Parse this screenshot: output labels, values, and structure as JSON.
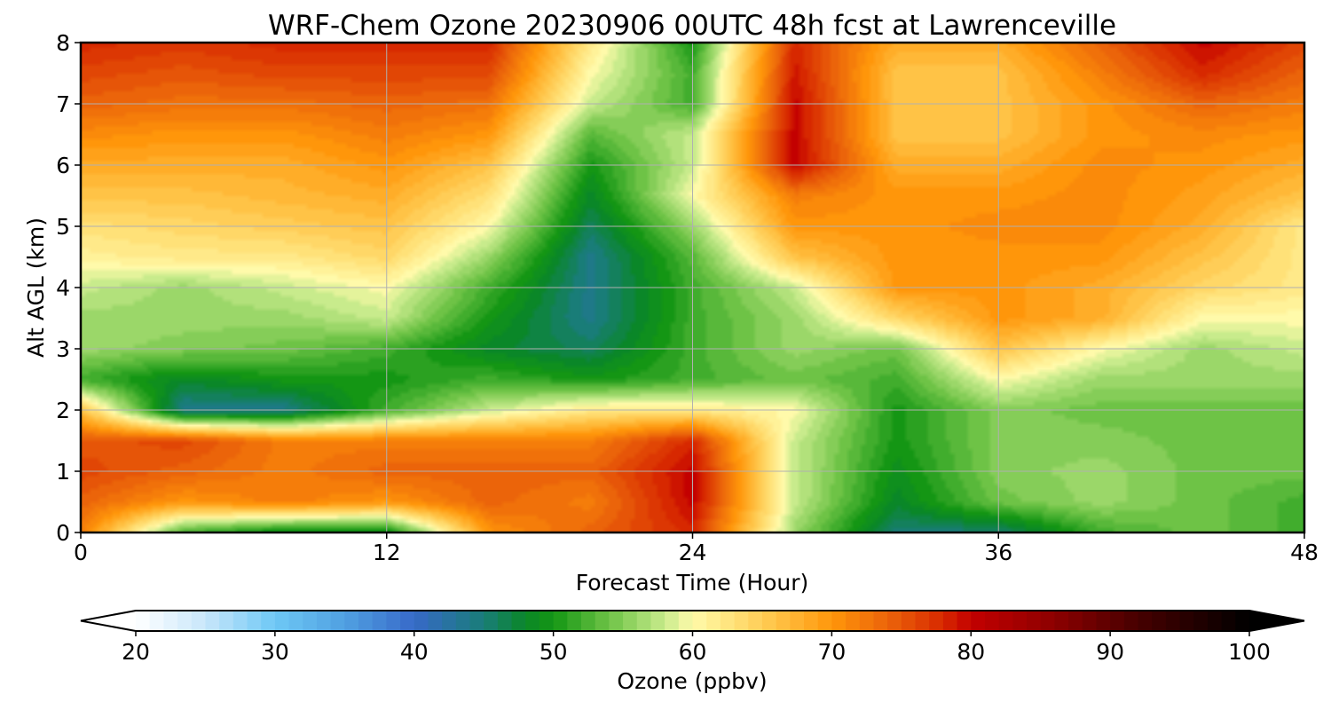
{
  "chart_data": {
    "type": "heatmap",
    "title": "WRF-Chem Ozone  20230906 00UTC 48h fcst at Lawrenceville",
    "xlabel": "Forecast Time (Hour)",
    "ylabel": "Alt AGL (km)",
    "xlim": [
      0,
      48
    ],
    "ylim": [
      0,
      8
    ],
    "xticks": [
      0,
      12,
      24,
      36,
      48
    ],
    "yticks": [
      0,
      1,
      2,
      3,
      4,
      5,
      6,
      7,
      8
    ],
    "grid": true,
    "x": [
      0,
      4,
      8,
      12,
      16,
      20,
      24,
      28,
      32,
      36,
      40,
      44,
      48
    ],
    "y": [
      0,
      0.5,
      1,
      1.5,
      2,
      2.5,
      3,
      3.5,
      4,
      4.5,
      5,
      5.5,
      6,
      6.5,
      7,
      7.5,
      8
    ],
    "z": [
      [
        72,
        52,
        48,
        48,
        70,
        74,
        78,
        56,
        45,
        45,
        52,
        54,
        52
      ],
      [
        74,
        70,
        72,
        70,
        74,
        72,
        80,
        58,
        48,
        54,
        56,
        54,
        52
      ],
      [
        76,
        74,
        72,
        74,
        74,
        74,
        80,
        58,
        49,
        55,
        56,
        54,
        54
      ],
      [
        75,
        76,
        72,
        72,
        72,
        72,
        78,
        58,
        50,
        55,
        55,
        54,
        54
      ],
      [
        66,
        44,
        44,
        52,
        58,
        62,
        62,
        60,
        50,
        55,
        54,
        54,
        54
      ],
      [
        52,
        48,
        50,
        50,
        52,
        50,
        52,
        54,
        52,
        60,
        56,
        56,
        56
      ],
      [
        56,
        55,
        54,
        52,
        48,
        46,
        52,
        56,
        54,
        66,
        60,
        56,
        58
      ],
      [
        56,
        56,
        56,
        58,
        50,
        44,
        52,
        56,
        64,
        70,
        68,
        60,
        60
      ],
      [
        58,
        56,
        58,
        60,
        52,
        44,
        52,
        58,
        70,
        70,
        68,
        64,
        62
      ],
      [
        61,
        62,
        62,
        64,
        56,
        44,
        53,
        66,
        70,
        70,
        70,
        66,
        62
      ],
      [
        63,
        64,
        65,
        66,
        60,
        46,
        56,
        70,
        70,
        71,
        71,
        68,
        62
      ],
      [
        66,
        66,
        67,
        68,
        63,
        48,
        60,
        72,
        70,
        70,
        71,
        69,
        66
      ],
      [
        68,
        68,
        68,
        70,
        66,
        50,
        58,
        80,
        68,
        68,
        71,
        70,
        68
      ],
      [
        71,
        70,
        70,
        72,
        70,
        53,
        58,
        80,
        66,
        66,
        70,
        71,
        70
      ],
      [
        74,
        73,
        73,
        74,
        73,
        58,
        52,
        80,
        66,
        66,
        70,
        74,
        72
      ],
      [
        76,
        75,
        76,
        76,
        76,
        60,
        52,
        79,
        66,
        66,
        72,
        78,
        74
      ],
      [
        78,
        77,
        78,
        78,
        78,
        62,
        50,
        78,
        68,
        68,
        74,
        80,
        76
      ]
    ],
    "colorbar": {
      "label": "Ozone  (ppbv)",
      "min": 20,
      "max": 100,
      "ticks": [
        20,
        30,
        40,
        50,
        60,
        70,
        80,
        90,
        100
      ],
      "extend": "both"
    }
  }
}
